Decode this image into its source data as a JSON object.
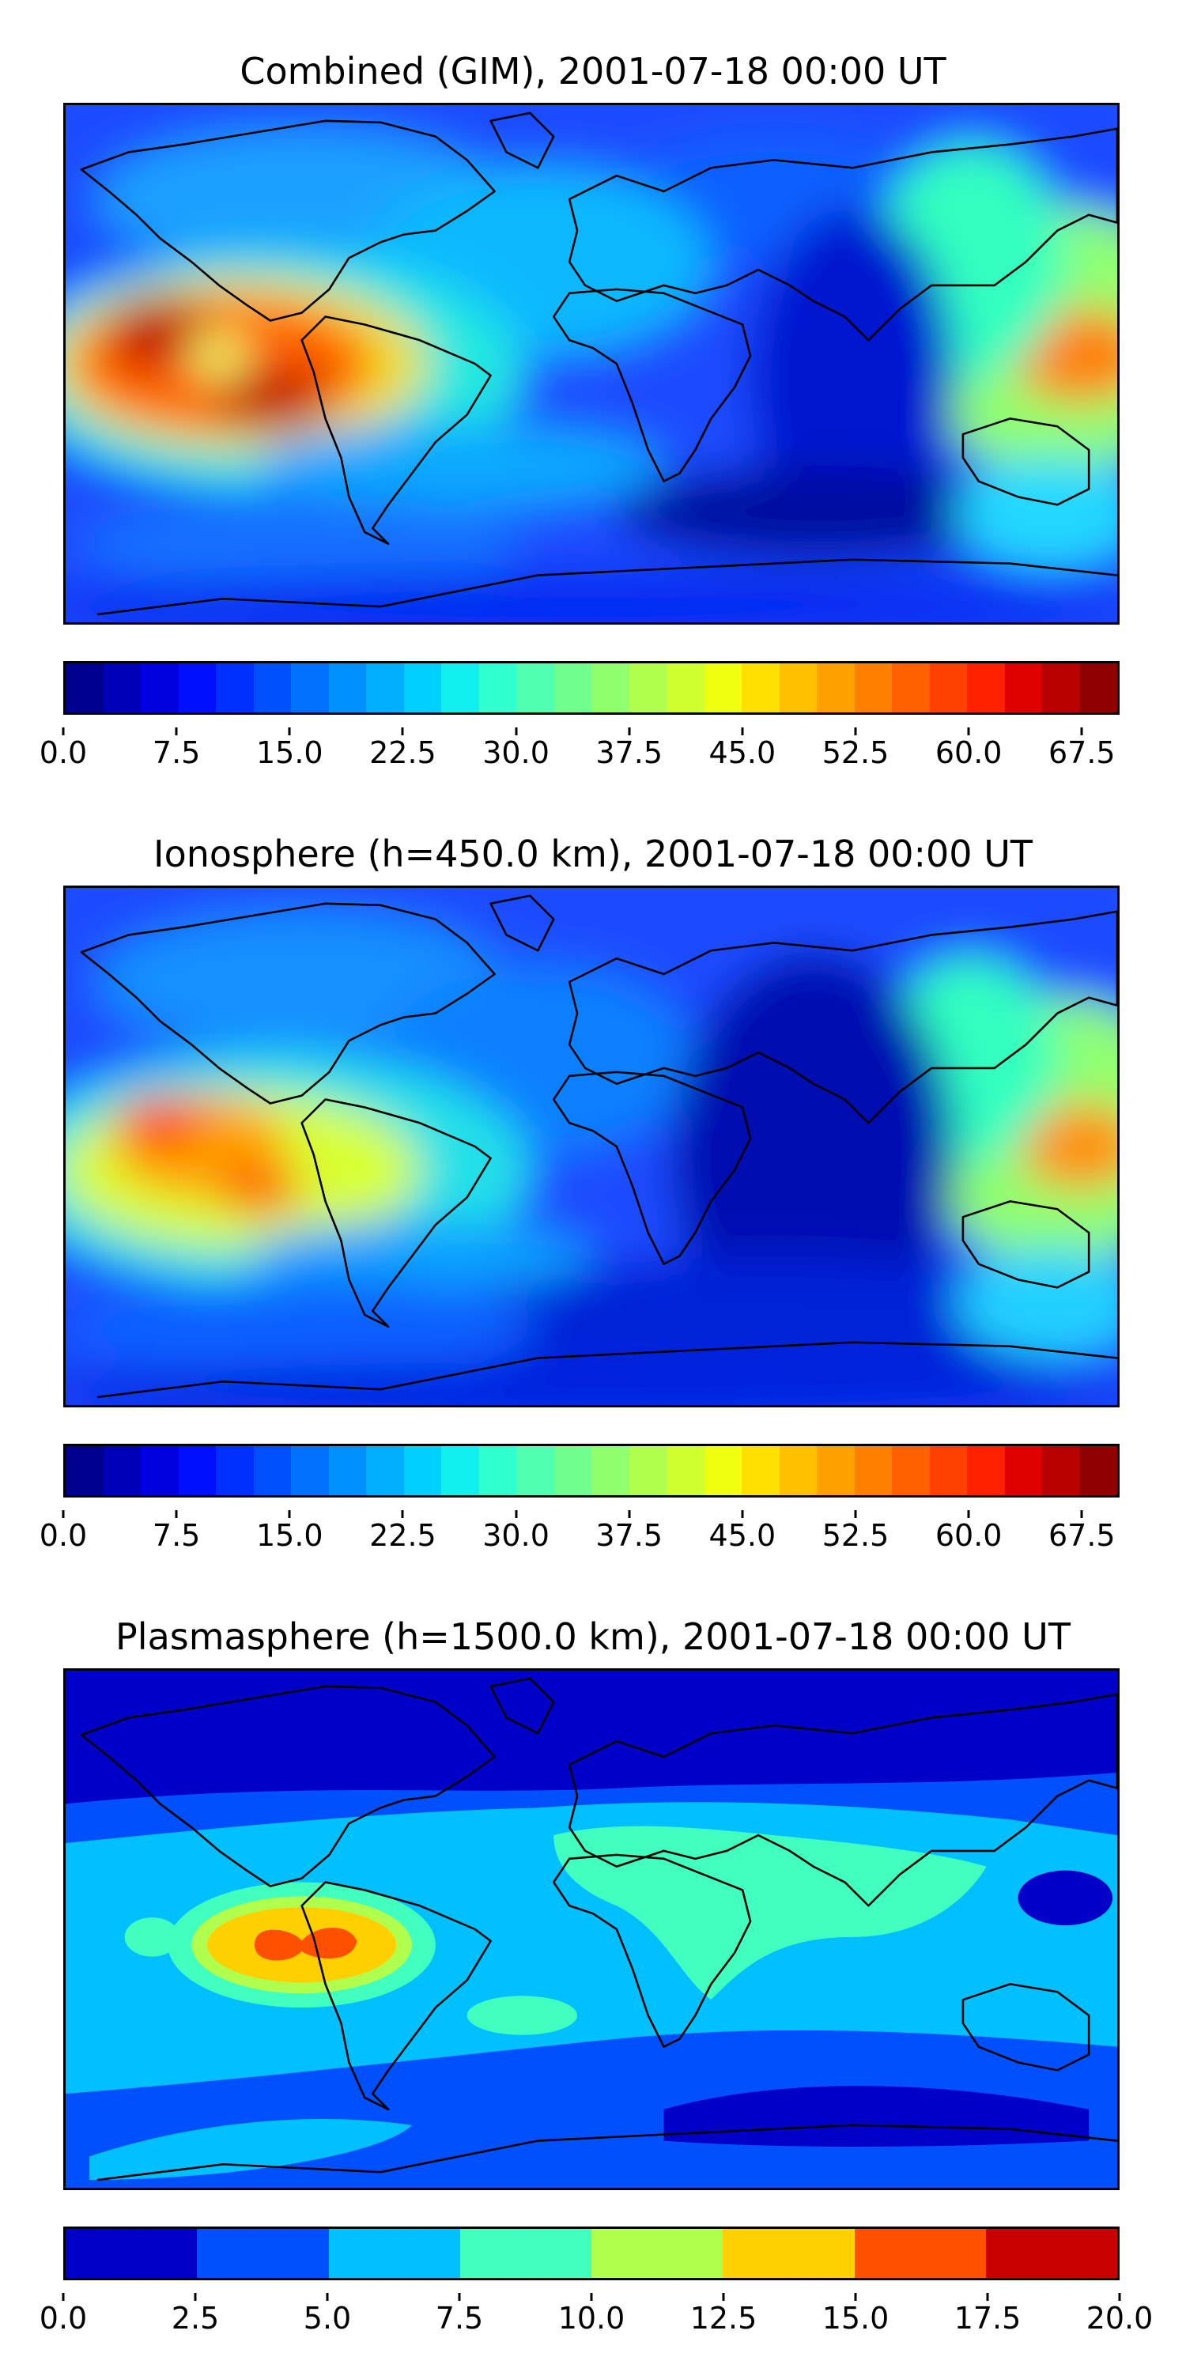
{
  "panels": [
    {
      "title": "Combined (GIM), 2001-07-18 00:00 UT",
      "colorbar": {
        "min": 0,
        "max": 70,
        "ticks": [
          "0.0",
          "7.5",
          "15.0",
          "22.5",
          "30.0",
          "37.5",
          "45.0",
          "52.5",
          "60.0",
          "67.5"
        ],
        "tick_values": [
          0,
          7.5,
          15,
          22.5,
          30,
          37.5,
          45,
          52.5,
          60,
          67.5
        ],
        "colors": [
          "#00008f",
          "#0000b8",
          "#0000e0",
          "#0010ff",
          "#0030ff",
          "#0050ff",
          "#0070ff",
          "#0090ff",
          "#00b0ff",
          "#00d0ff",
          "#10f0ef",
          "#30ffcf",
          "#50ffaf",
          "#70ff8f",
          "#90ff6f",
          "#b0ff4f",
          "#d0ff2f",
          "#f0ff0f",
          "#ffe000",
          "#ffc000",
          "#ffa000",
          "#ff8000",
          "#ff6000",
          "#ff4000",
          "#ff2000",
          "#e00000",
          "#b80000",
          "#8f0000"
        ]
      }
    },
    {
      "title": "Ionosphere  (h=450.0 km), 2001-07-18 00:00 UT",
      "colorbar": {
        "min": 0,
        "max": 70,
        "ticks": [
          "0.0",
          "7.5",
          "15.0",
          "22.5",
          "30.0",
          "37.5",
          "45.0",
          "52.5",
          "60.0",
          "67.5"
        ],
        "tick_values": [
          0,
          7.5,
          15,
          22.5,
          30,
          37.5,
          45,
          52.5,
          60,
          67.5
        ],
        "colors": [
          "#00008f",
          "#0000b8",
          "#0000e0",
          "#0010ff",
          "#0030ff",
          "#0050ff",
          "#0070ff",
          "#0090ff",
          "#00b0ff",
          "#00d0ff",
          "#10f0ef",
          "#30ffcf",
          "#50ffaf",
          "#70ff8f",
          "#90ff6f",
          "#b0ff4f",
          "#d0ff2f",
          "#f0ff0f",
          "#ffe000",
          "#ffc000",
          "#ffa000",
          "#ff8000",
          "#ff6000",
          "#ff4000",
          "#ff2000",
          "#e00000",
          "#b80000",
          "#8f0000"
        ]
      }
    },
    {
      "title": "Plasmasphere (h=1500.0 km), 2001-07-18 00:00 UT",
      "colorbar": {
        "min": 0,
        "max": 20,
        "ticks": [
          "0.0",
          "2.5",
          "5.0",
          "7.5",
          "10.0",
          "12.5",
          "15.0",
          "17.5",
          "20.0"
        ],
        "tick_values": [
          0,
          2.5,
          5,
          7.5,
          10,
          12.5,
          15,
          17.5,
          20
        ],
        "colors": [
          "#0000c8",
          "#0050ff",
          "#00c0ff",
          "#40ffbf",
          "#b0ff4f",
          "#ffd000",
          "#ff5000",
          "#c80000"
        ]
      }
    }
  ]
}
